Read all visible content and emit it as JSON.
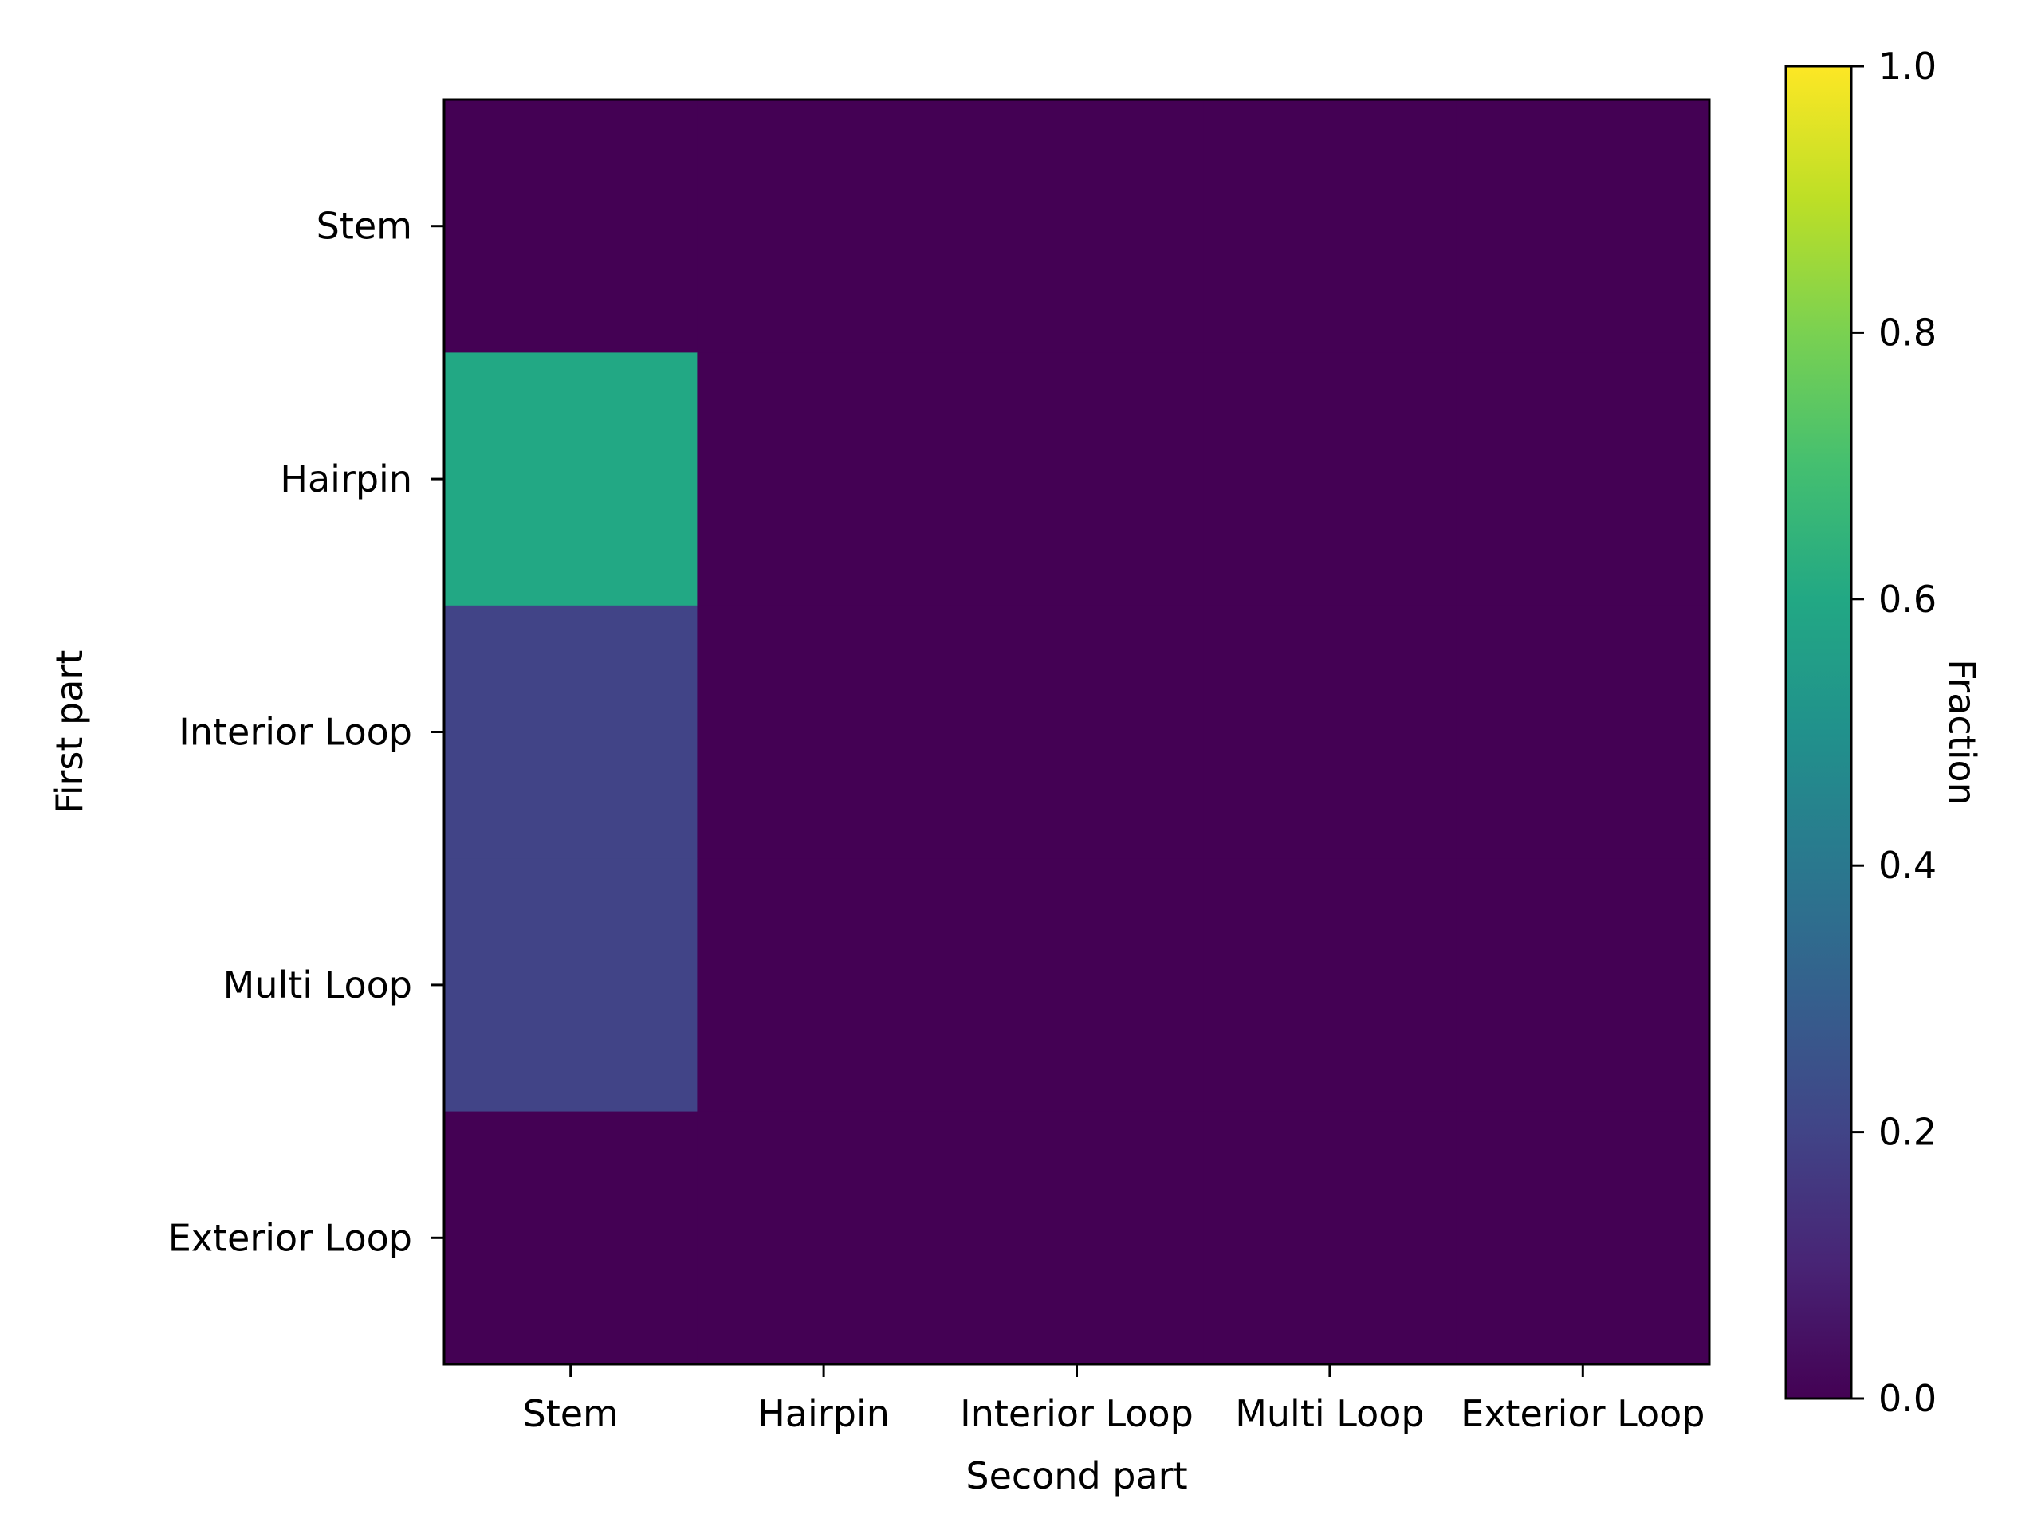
{
  "chart_data": {
    "type": "heatmap",
    "title": "",
    "xlabel": "Second part",
    "ylabel": "First part",
    "x_categories": [
      "Stem",
      "Hairpin",
      "Interior Loop",
      "Multi Loop",
      "Exterior Loop"
    ],
    "y_categories": [
      "Stem",
      "Hairpin",
      "Interior Loop",
      "Multi Loop",
      "Exterior Loop"
    ],
    "values": [
      [
        0.0,
        0.0,
        0.0,
        0.0,
        0.0
      ],
      [
        0.6,
        0.0,
        0.0,
        0.0,
        0.0
      ],
      [
        0.2,
        0.0,
        0.0,
        0.0,
        0.0
      ],
      [
        0.2,
        0.0,
        0.0,
        0.0,
        0.0
      ],
      [
        0.0,
        0.0,
        0.0,
        0.0,
        0.0
      ]
    ],
    "colormap": "viridis",
    "colorbar": {
      "label": "Fraction",
      "range": [
        0.0,
        1.0
      ],
      "ticks": [
        "0.0",
        "0.2",
        "0.4",
        "0.6",
        "0.8",
        "1.0"
      ],
      "tick_values": [
        0.0,
        0.2,
        0.4,
        0.6,
        0.8,
        1.0
      ]
    },
    "grid": false
  }
}
